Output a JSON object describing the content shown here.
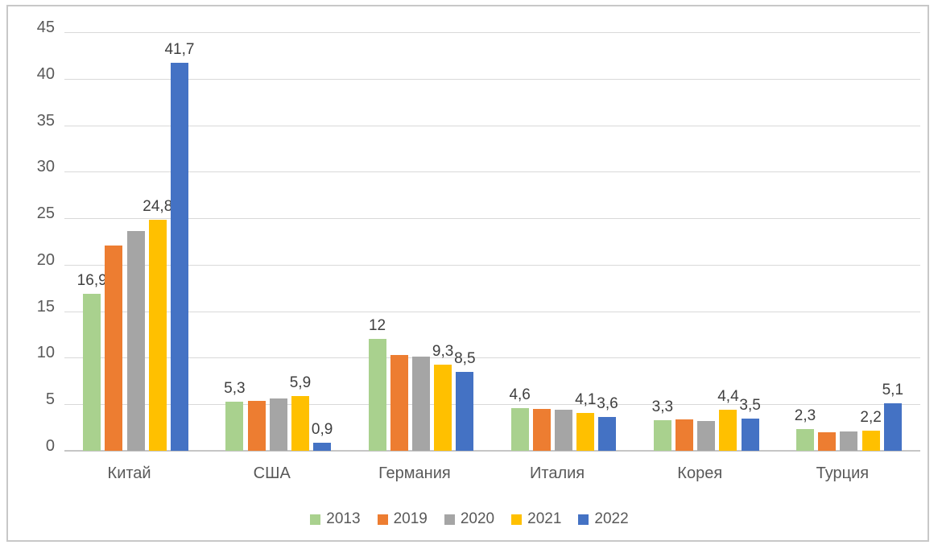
{
  "chart_data": {
    "type": "bar",
    "title": "",
    "xlabel": "",
    "ylabel": "",
    "categories": [
      "Китай",
      "США",
      "Германия",
      "Италия",
      "Корея",
      "Турция"
    ],
    "series": [
      {
        "name": "2013",
        "color": "#A9D18E",
        "values": [
          16.9,
          5.3,
          12,
          4.6,
          3.3,
          2.3
        ],
        "data_labels": [
          "16,9",
          "5,3",
          "12",
          "4,6",
          "3,3",
          "2,3"
        ]
      },
      {
        "name": "2019",
        "color": "#ED7D31",
        "values": [
          22.1,
          5.4,
          10.3,
          4.5,
          3.4,
          2.0
        ],
        "data_labels": null
      },
      {
        "name": "2020",
        "color": "#A5A5A5",
        "values": [
          23.6,
          5.6,
          10.1,
          4.4,
          3.2,
          2.1
        ],
        "data_labels": null
      },
      {
        "name": "2021",
        "color": "#FFC000",
        "values": [
          24.8,
          5.9,
          9.3,
          4.1,
          4.4,
          2.2
        ],
        "data_labels": [
          "24,8",
          "5,9",
          "9,3",
          "4,1",
          "4,4",
          "2,2"
        ]
      },
      {
        "name": "2022",
        "color": "#4472C4",
        "values": [
          41.7,
          0.9,
          8.5,
          3.6,
          3.5,
          5.1
        ],
        "data_labels": [
          "41,7",
          "0,9",
          "8,5",
          "3,6",
          "3,5",
          "5,1"
        ]
      }
    ],
    "ylim": [
      0,
      45
    ],
    "yticks": [
      0,
      5,
      10,
      15,
      20,
      25,
      30,
      35,
      40,
      45
    ],
    "ytick_labels": [
      "0",
      "5",
      "10",
      "15",
      "20",
      "25",
      "30",
      "35",
      "40",
      "45"
    ],
    "grid": true,
    "legend_position": "bottom",
    "decimal_separator": ","
  },
  "styles": {
    "background": "#FFFFFF",
    "frame_border": "#C8C8C8",
    "gridline": "#D9D9D9",
    "axis_line": "#C6C6C6",
    "tick_text": "#595959",
    "data_label_text": "#3F3F3F"
  }
}
